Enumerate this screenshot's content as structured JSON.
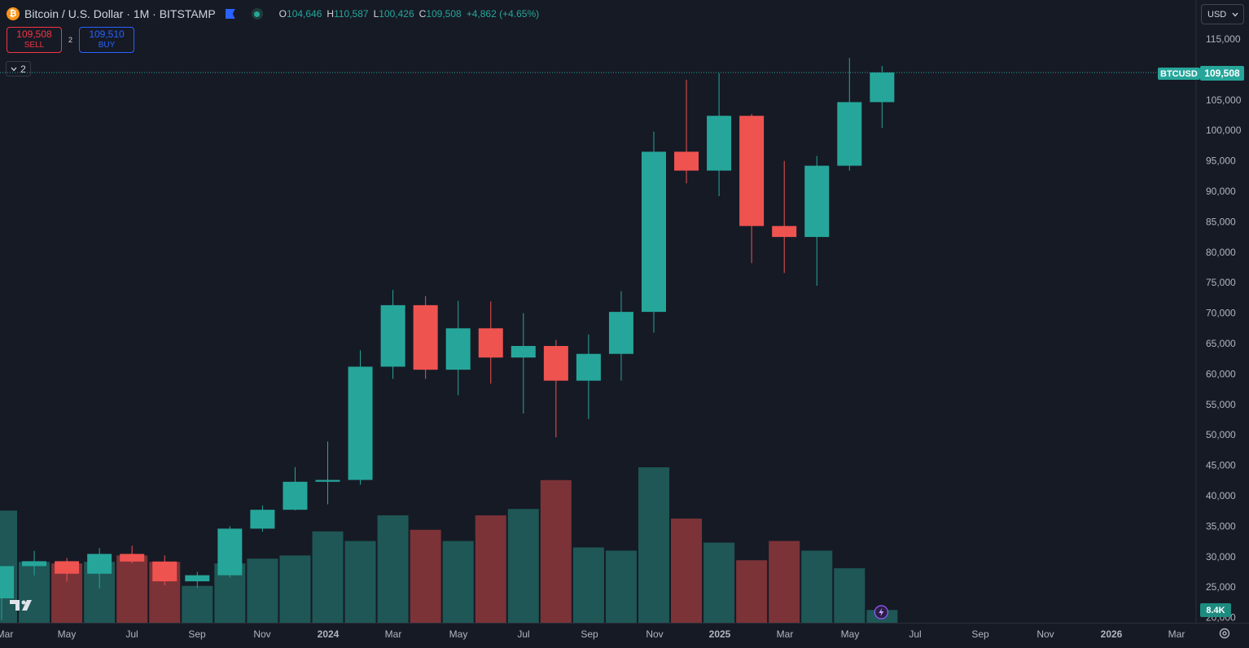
{
  "header": {
    "symbol_title": "Bitcoin / U.S. Dollar · 1M · BITSTAMP",
    "open_label": "O",
    "open_value": "104,646",
    "high_label": "H",
    "high_value": "110,587",
    "low_label": "L",
    "low_value": "100,426",
    "close_label": "C",
    "close_value": "109,508",
    "change": "+4,862 (+4.65%)"
  },
  "trade": {
    "sell_price": "109,508",
    "sell_label": "SELL",
    "spread": "2",
    "buy_price": "109,510",
    "buy_label": "BUY"
  },
  "indicators_toggle": {
    "count": "2"
  },
  "currency_selector": {
    "value": "USD"
  },
  "price_tags": {
    "ticker": "BTCUSD",
    "last_price": "109,508",
    "volume_last": "8.4K"
  },
  "colors": {
    "up": "#26a69a",
    "down": "#ef5350",
    "volume_up": "#1e5756",
    "volume_down": "#7b3337",
    "background": "#161a25"
  },
  "chart_data": {
    "type": "candlestick",
    "interval": "1M",
    "price_axis": {
      "ticks": [
        20000,
        25000,
        30000,
        35000,
        40000,
        45000,
        50000,
        55000,
        60000,
        65000,
        70000,
        75000,
        80000,
        85000,
        90000,
        95000,
        100000,
        105000,
        110000,
        115000
      ]
    },
    "time_axis": {
      "labels": [
        "Mar",
        "May",
        "Jul",
        "Sep",
        "Nov",
        "2024",
        "Mar",
        "May",
        "Jul",
        "Sep",
        "Nov",
        "2025",
        "Mar",
        "May",
        "Jul",
        "Sep",
        "Nov",
        "2026",
        "Mar"
      ]
    },
    "candles": [
      {
        "date": "2023-03",
        "open": 23150,
        "high": 28400,
        "low": 19600,
        "close": 28450
      },
      {
        "date": "2023-04",
        "open": 28450,
        "high": 30950,
        "low": 26900,
        "close": 29250
      },
      {
        "date": "2023-05",
        "open": 29250,
        "high": 29800,
        "low": 25900,
        "close": 27200
      },
      {
        "date": "2023-06",
        "open": 27200,
        "high": 31400,
        "low": 24800,
        "close": 30450
      },
      {
        "date": "2023-07",
        "open": 30450,
        "high": 31800,
        "low": 28900,
        "close": 29200
      },
      {
        "date": "2023-08",
        "open": 29200,
        "high": 30200,
        "low": 25300,
        "close": 25950
      },
      {
        "date": "2023-09",
        "open": 25950,
        "high": 27500,
        "low": 24900,
        "close": 26950
      },
      {
        "date": "2023-10",
        "open": 26950,
        "high": 35000,
        "low": 26600,
        "close": 34600
      },
      {
        "date": "2023-11",
        "open": 34600,
        "high": 38400,
        "low": 34100,
        "close": 37700
      },
      {
        "date": "2023-12",
        "open": 37700,
        "high": 44700,
        "low": 37600,
        "close": 42300
      },
      {
        "date": "2024-01",
        "open": 42300,
        "high": 48900,
        "low": 38600,
        "close": 42600
      },
      {
        "date": "2024-02",
        "open": 42600,
        "high": 63900,
        "low": 41800,
        "close": 61200
      },
      {
        "date": "2024-03",
        "open": 61200,
        "high": 73800,
        "low": 59200,
        "close": 71300
      },
      {
        "date": "2024-04",
        "open": 71300,
        "high": 72800,
        "low": 59200,
        "close": 60700
      },
      {
        "date": "2024-05",
        "open": 60700,
        "high": 72000,
        "low": 56500,
        "close": 67500
      },
      {
        "date": "2024-06",
        "open": 67500,
        "high": 71900,
        "low": 58400,
        "close": 62700
      },
      {
        "date": "2024-07",
        "open": 62700,
        "high": 70000,
        "low": 53500,
        "close": 64600
      },
      {
        "date": "2024-08",
        "open": 64600,
        "high": 65600,
        "low": 49600,
        "close": 58900
      },
      {
        "date": "2024-09",
        "open": 58900,
        "high": 66500,
        "low": 52600,
        "close": 63300
      },
      {
        "date": "2024-10",
        "open": 63300,
        "high": 73600,
        "low": 58900,
        "close": 70200
      },
      {
        "date": "2024-11",
        "open": 70200,
        "high": 99800,
        "low": 66800,
        "close": 96500
      },
      {
        "date": "2024-12",
        "open": 96500,
        "high": 108300,
        "low": 91300,
        "close": 93400
      },
      {
        "date": "2025-01",
        "open": 93400,
        "high": 109400,
        "low": 89200,
        "close": 102400
      },
      {
        "date": "2025-02",
        "open": 102400,
        "high": 102700,
        "low": 78200,
        "close": 84300
      },
      {
        "date": "2025-03",
        "open": 84300,
        "high": 95000,
        "low": 76600,
        "close": 82500
      },
      {
        "date": "2025-04",
        "open": 82500,
        "high": 95800,
        "low": 74500,
        "close": 94200
      },
      {
        "date": "2025-05",
        "open": 94200,
        "high": 111900,
        "low": 93400,
        "close": 104646
      },
      {
        "date": "2025-06",
        "open": 104646,
        "high": 110587,
        "low": 100426,
        "close": 109508
      }
    ],
    "volume_axis_max_visible": 45000,
    "volumes_relative": [
      0.7,
      0.38,
      0.37,
      0.38,
      0.42,
      0.38,
      0.23,
      0.37,
      0.4,
      0.42,
      0.57,
      0.51,
      0.67,
      0.58,
      0.51,
      0.67,
      0.71,
      0.89,
      0.47,
      0.45,
      0.97,
      0.65,
      0.5,
      0.39,
      0.51,
      0.45,
      0.34,
      0.08
    ],
    "last_price": 109508
  }
}
